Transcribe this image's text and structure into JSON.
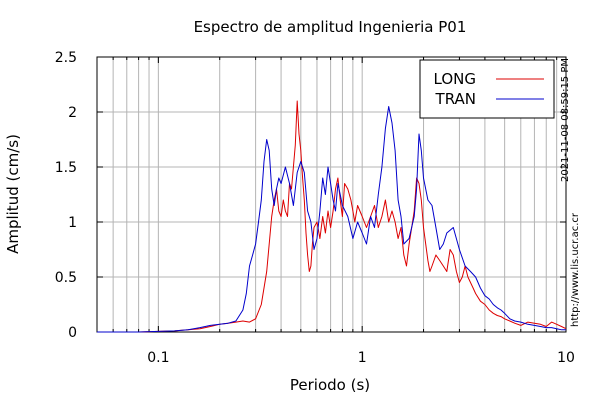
{
  "chart_data": {
    "type": "line",
    "title": "Espectro de amplitud Ingenieria P01",
    "xlabel": "Periodo (s)",
    "ylabel": "Amplitud (cm/s)",
    "x_scale": "log",
    "xlim": [
      0.05,
      10
    ],
    "ylim": [
      0,
      2.5
    ],
    "x_ticks": [
      {
        "value": 0.1,
        "label": "0.1"
      },
      {
        "value": 1,
        "label": "1"
      },
      {
        "value": 10,
        "label": "10"
      }
    ],
    "y_ticks": [
      {
        "value": 0,
        "label": "0"
      },
      {
        "value": 0.5,
        "label": "0.5"
      },
      {
        "value": 1,
        "label": "1"
      },
      {
        "value": 1.5,
        "label": "1.5"
      },
      {
        "value": 2,
        "label": "2"
      },
      {
        "value": 2.5,
        "label": "2.5"
      }
    ],
    "grid": true,
    "legend_position": "top-right",
    "timestamp": "2021-11-08 08:59:15 PM",
    "source_url": "http://www.lis.ucr.ac.cr",
    "series": [
      {
        "name": "LONG",
        "color": "#dd0000",
        "x": [
          0.05,
          0.08,
          0.1,
          0.12,
          0.14,
          0.16,
          0.18,
          0.2,
          0.22,
          0.24,
          0.26,
          0.28,
          0.3,
          0.32,
          0.34,
          0.35,
          0.36,
          0.37,
          0.38,
          0.39,
          0.4,
          0.41,
          0.42,
          0.43,
          0.44,
          0.45,
          0.46,
          0.47,
          0.48,
          0.49,
          0.5,
          0.51,
          0.52,
          0.53,
          0.54,
          0.55,
          0.56,
          0.57,
          0.58,
          0.6,
          0.62,
          0.64,
          0.66,
          0.68,
          0.7,
          0.72,
          0.74,
          0.76,
          0.78,
          0.8,
          0.82,
          0.85,
          0.88,
          0.9,
          0.92,
          0.95,
          1.0,
          1.05,
          1.1,
          1.15,
          1.2,
          1.25,
          1.3,
          1.35,
          1.4,
          1.45,
          1.5,
          1.55,
          1.6,
          1.65,
          1.7,
          1.75,
          1.8,
          1.85,
          1.9,
          1.95,
          2.0,
          2.05,
          2.1,
          2.15,
          2.2,
          2.3,
          2.4,
          2.5,
          2.6,
          2.7,
          2.8,
          2.9,
          3.0,
          3.1,
          3.2,
          3.3,
          3.4,
          3.5,
          3.6,
          3.8,
          4.0,
          4.2,
          4.4,
          4.6,
          4.8,
          5.0,
          5.3,
          5.6,
          6.0,
          6.5,
          7.0,
          7.5,
          8.0,
          8.5,
          9.0,
          9.5,
          10.0
        ],
        "values": [
          0.0,
          0.0,
          0.005,
          0.01,
          0.02,
          0.03,
          0.05,
          0.07,
          0.08,
          0.09,
          0.1,
          0.09,
          0.12,
          0.25,
          0.55,
          0.8,
          1.05,
          1.2,
          1.3,
          1.1,
          1.05,
          1.2,
          1.1,
          1.05,
          1.35,
          1.3,
          1.5,
          1.7,
          2.1,
          1.8,
          1.65,
          1.4,
          1.2,
          0.9,
          0.7,
          0.55,
          0.6,
          0.8,
          0.95,
          1.0,
          0.85,
          1.05,
          0.9,
          1.1,
          0.95,
          1.1,
          1.3,
          1.4,
          1.2,
          1.05,
          1.35,
          1.3,
          1.2,
          1.1,
          1.0,
          1.15,
          1.05,
          0.95,
          1.05,
          1.15,
          0.95,
          1.05,
          1.2,
          1.0,
          1.1,
          1.0,
          0.85,
          0.95,
          0.7,
          0.6,
          0.8,
          0.95,
          1.1,
          1.4,
          1.35,
          1.2,
          0.95,
          0.8,
          0.65,
          0.55,
          0.6,
          0.7,
          0.65,
          0.6,
          0.55,
          0.75,
          0.7,
          0.55,
          0.45,
          0.5,
          0.6,
          0.5,
          0.45,
          0.4,
          0.35,
          0.28,
          0.25,
          0.2,
          0.17,
          0.15,
          0.14,
          0.12,
          0.1,
          0.08,
          0.06,
          0.09,
          0.08,
          0.07,
          0.05,
          0.09,
          0.07,
          0.05,
          0.03
        ]
      },
      {
        "name": "TRAN",
        "color": "#0000cc",
        "x": [
          0.05,
          0.08,
          0.1,
          0.12,
          0.14,
          0.16,
          0.18,
          0.2,
          0.22,
          0.24,
          0.26,
          0.27,
          0.28,
          0.29,
          0.3,
          0.31,
          0.32,
          0.33,
          0.34,
          0.35,
          0.36,
          0.37,
          0.38,
          0.39,
          0.4,
          0.42,
          0.44,
          0.46,
          0.48,
          0.5,
          0.52,
          0.54,
          0.56,
          0.58,
          0.6,
          0.62,
          0.64,
          0.66,
          0.68,
          0.7,
          0.72,
          0.74,
          0.76,
          0.78,
          0.8,
          0.85,
          0.9,
          0.95,
          1.0,
          1.05,
          1.1,
          1.15,
          1.2,
          1.25,
          1.3,
          1.35,
          1.4,
          1.45,
          1.5,
          1.55,
          1.6,
          1.7,
          1.8,
          1.85,
          1.9,
          1.95,
          2.0,
          2.1,
          2.2,
          2.3,
          2.4,
          2.5,
          2.6,
          2.8,
          3.0,
          3.2,
          3.4,
          3.6,
          3.8,
          4.0,
          4.2,
          4.4,
          4.6,
          4.8,
          5.0,
          5.3,
          5.6,
          6.0,
          6.5,
          7.0,
          7.5,
          8.0,
          8.5,
          9.0,
          9.5,
          10.0
        ],
        "values": [
          0.0,
          0.0,
          0.005,
          0.01,
          0.02,
          0.04,
          0.06,
          0.07,
          0.08,
          0.1,
          0.2,
          0.35,
          0.6,
          0.7,
          0.8,
          1.0,
          1.2,
          1.55,
          1.75,
          1.65,
          1.3,
          1.15,
          1.3,
          1.4,
          1.35,
          1.5,
          1.35,
          1.15,
          1.45,
          1.55,
          1.45,
          1.1,
          1.0,
          0.75,
          0.85,
          1.1,
          1.4,
          1.25,
          1.5,
          1.35,
          1.2,
          1.1,
          1.35,
          1.25,
          1.15,
          1.05,
          0.85,
          1.0,
          0.9,
          0.8,
          1.05,
          0.95,
          1.25,
          1.5,
          1.85,
          2.05,
          1.9,
          1.65,
          1.2,
          1.05,
          0.8,
          0.85,
          1.05,
          1.3,
          1.8,
          1.65,
          1.4,
          1.2,
          1.15,
          0.95,
          0.75,
          0.8,
          0.9,
          0.95,
          0.75,
          0.6,
          0.55,
          0.5,
          0.4,
          0.33,
          0.3,
          0.25,
          0.22,
          0.2,
          0.17,
          0.12,
          0.1,
          0.09,
          0.07,
          0.06,
          0.05,
          0.04,
          0.04,
          0.03,
          0.02,
          0.02
        ]
      }
    ]
  }
}
